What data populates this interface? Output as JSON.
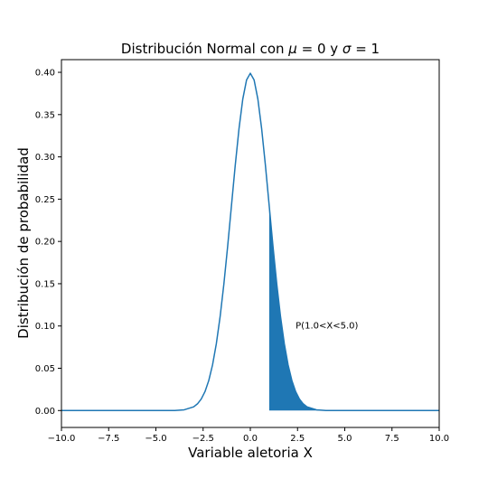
{
  "chart_data": {
    "type": "line",
    "title_main": "Distribución Normal con ",
    "title_mu": "μ",
    "title_eq_mu": " = 0 y ",
    "title_sigma": "σ",
    "title_eq_sigma": " = 1",
    "xlabel": "Variable aletoria X",
    "ylabel": "Distribución de probabilidad",
    "xlim": [
      -10,
      10
    ],
    "ylim": [
      -0.02,
      0.415
    ],
    "xticks": [
      -10,
      -7.5,
      -5,
      -2.5,
      0,
      2.5,
      5,
      7.5,
      10
    ],
    "xtick_labels": [
      "−10.0",
      "−7.5",
      "−5.0",
      "−2.5",
      "0.0",
      "2.5",
      "5.0",
      "7.5",
      "10.0"
    ],
    "yticks": [
      0,
      0.05,
      0.1,
      0.15,
      0.2,
      0.25,
      0.3,
      0.35,
      0.4
    ],
    "ytick_labels": [
      "0.00",
      "0.05",
      "0.10",
      "0.15",
      "0.20",
      "0.25",
      "0.30",
      "0.35",
      "0.40"
    ],
    "grid": false,
    "series": [
      {
        "color": "#1f77b4",
        "x": [
          -10,
          -9,
          -8,
          -7,
          -6,
          -5,
          -4,
          -3.5,
          -3,
          -2.8,
          -2.6,
          -2.4,
          -2.2,
          -2,
          -1.8,
          -1.6,
          -1.4,
          -1.2,
          -1,
          -0.8,
          -0.6,
          -0.4,
          -0.2,
          0,
          0.2,
          0.4,
          0.6,
          0.8,
          1,
          1.2,
          1.4,
          1.6,
          1.8,
          2,
          2.2,
          2.4,
          2.6,
          2.8,
          3,
          3.5,
          4,
          5,
          6,
          7,
          8,
          9,
          10
        ],
        "y": [
          0,
          0,
          0,
          0,
          0,
          0,
          0.0001,
          0.0009,
          0.0044,
          0.0079,
          0.0136,
          0.0224,
          0.0355,
          0.054,
          0.079,
          0.1109,
          0.1497,
          0.1942,
          0.242,
          0.2897,
          0.3332,
          0.3683,
          0.391,
          0.3989,
          0.391,
          0.3683,
          0.3332,
          0.2897,
          0.242,
          0.1942,
          0.1497,
          0.1109,
          0.079,
          0.054,
          0.0355,
          0.0224,
          0.0136,
          0.0079,
          0.0044,
          0.0009,
          0.0001,
          0,
          0,
          0,
          0,
          0,
          0
        ]
      }
    ],
    "fill": {
      "color": "#1f77b4",
      "x": [
        1,
        1.2,
        1.4,
        1.6,
        1.8,
        2,
        2.2,
        2.4,
        2.6,
        2.8,
        3,
        3.5,
        4,
        5
      ],
      "y": [
        0.242,
        0.1942,
        0.1497,
        0.1109,
        0.079,
        0.054,
        0.0355,
        0.0224,
        0.0136,
        0.0079,
        0.0044,
        0.0009,
        0.0001,
        0
      ]
    },
    "annotation": {
      "text": "P(1.0<X<5.0)",
      "x": 2.4,
      "y": 0.1
    }
  }
}
